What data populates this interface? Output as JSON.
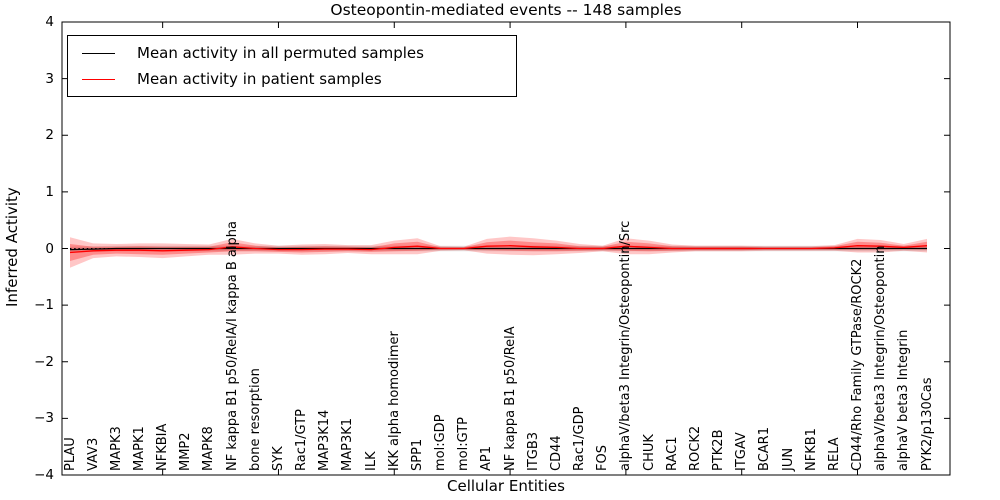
{
  "figure": {
    "title": "Osteopontin-mediated events -- 148 samples",
    "x_axis_label": "Cellular Entities",
    "y_axis_label": "Inferred Activity"
  },
  "legend": {
    "items": [
      {
        "label": "Mean activity in all permuted samples",
        "color": "#000000"
      },
      {
        "label": "Mean activity in patient samples",
        "color": "#ff0000"
      }
    ]
  },
  "chart_data": {
    "type": "line",
    "title": "Osteopontin-mediated events -- 148 samples",
    "xlabel": "Cellular Entities",
    "ylabel": "Inferred Activity",
    "ylim": [
      -4,
      4
    ],
    "yticks": [
      4,
      3,
      2,
      1,
      0,
      -1,
      -2,
      -3,
      -4
    ],
    "xtick_positions": [
      5,
      10,
      15,
      20,
      25,
      30,
      35
    ],
    "grid": false,
    "legend_position": "upper left",
    "zero_line": {
      "style": "dotted",
      "color": "#000000",
      "y": 0
    },
    "categories": [
      "PLAU",
      "VAV3",
      "MAPK3",
      "MAPK1",
      "NFKBIA",
      "MMP2",
      "MAPK8",
      "NF kappa B1 p50/RelA/I kappa B alpha",
      "bone resorption",
      "SYK",
      "Rac1/GTP",
      "MAP3K14",
      "MAP3K1",
      "ILK",
      "IKK alpha homodimer",
      "SPP1",
      "mol:GDP",
      "mol:GTP",
      "AP1",
      "NF kappa B1 p50/RelA",
      "ITGB3",
      "CD44",
      "Rac1/GDP",
      "FOS",
      "alphaV/beta3 Integrin/Osteopontin/Src",
      "CHUK",
      "RAC1",
      "ROCK2",
      "PTK2B",
      "ITGAV",
      "BCAR1",
      "JUN",
      "NFKB1",
      "RELA",
      "CD44/Rho Family GTPase/ROCK2",
      "alphaV/beta3 Integrin/Osteopontin",
      "alphaV beta3 Integrin",
      "PYK2/p130Cas"
    ],
    "series": [
      {
        "name": "Mean activity in all permuted samples",
        "color": "#000000",
        "style": "solid",
        "values": [
          -0.02,
          -0.01,
          0,
          0,
          0,
          0,
          0,
          0,
          0,
          0,
          0,
          0,
          0,
          0,
          0,
          0,
          0,
          0,
          0,
          0,
          0,
          0,
          0,
          0,
          0,
          0,
          0,
          0,
          0,
          0,
          0,
          0,
          0,
          0,
          0,
          0,
          0,
          0
        ]
      },
      {
        "name": "Mean activity in patient samples",
        "color": "#ff0000",
        "style": "solid",
        "values": [
          -0.07,
          -0.04,
          -0.03,
          -0.03,
          -0.04,
          -0.03,
          -0.02,
          0.03,
          0,
          -0.02,
          -0.02,
          -0.01,
          -0.01,
          -0.02,
          0.02,
          0.04,
          0,
          0,
          0.04,
          0.05,
          0.03,
          0.02,
          0,
          0,
          0.04,
          0.02,
          0,
          0,
          0,
          0,
          0,
          0,
          0,
          0.01,
          0.05,
          0.04,
          0.02,
          0.05
        ]
      }
    ],
    "bands": {
      "permuted": {
        "color": "#999999",
        "opacity": 0.3,
        "halfwidth": 0.05
      },
      "patient_outer": {
        "color": "#ff0000",
        "opacity": 0.22,
        "halfwidths": [
          0.27,
          0.13,
          0.11,
          0.12,
          0.13,
          0.11,
          0.09,
          0.14,
          0.09,
          0.07,
          0.09,
          0.09,
          0.07,
          0.08,
          0.12,
          0.14,
          0.04,
          0.03,
          0.13,
          0.16,
          0.15,
          0.12,
          0.08,
          0.05,
          0.14,
          0.12,
          0.07,
          0.05,
          0.05,
          0.05,
          0.04,
          0.04,
          0.04,
          0.05,
          0.12,
          0.11,
          0.06,
          0.12
        ]
      },
      "patient_inner": {
        "color": "#ff0000",
        "opacity": 0.3,
        "halfwidths": [
          0.15,
          0.07,
          0.06,
          0.07,
          0.07,
          0.06,
          0.05,
          0.08,
          0.05,
          0.04,
          0.05,
          0.05,
          0.04,
          0.04,
          0.07,
          0.08,
          0.02,
          0.02,
          0.07,
          0.09,
          0.08,
          0.07,
          0.04,
          0.03,
          0.08,
          0.07,
          0.04,
          0.03,
          0.03,
          0.03,
          0.02,
          0.02,
          0.02,
          0.03,
          0.07,
          0.06,
          0.03,
          0.07
        ]
      }
    }
  }
}
